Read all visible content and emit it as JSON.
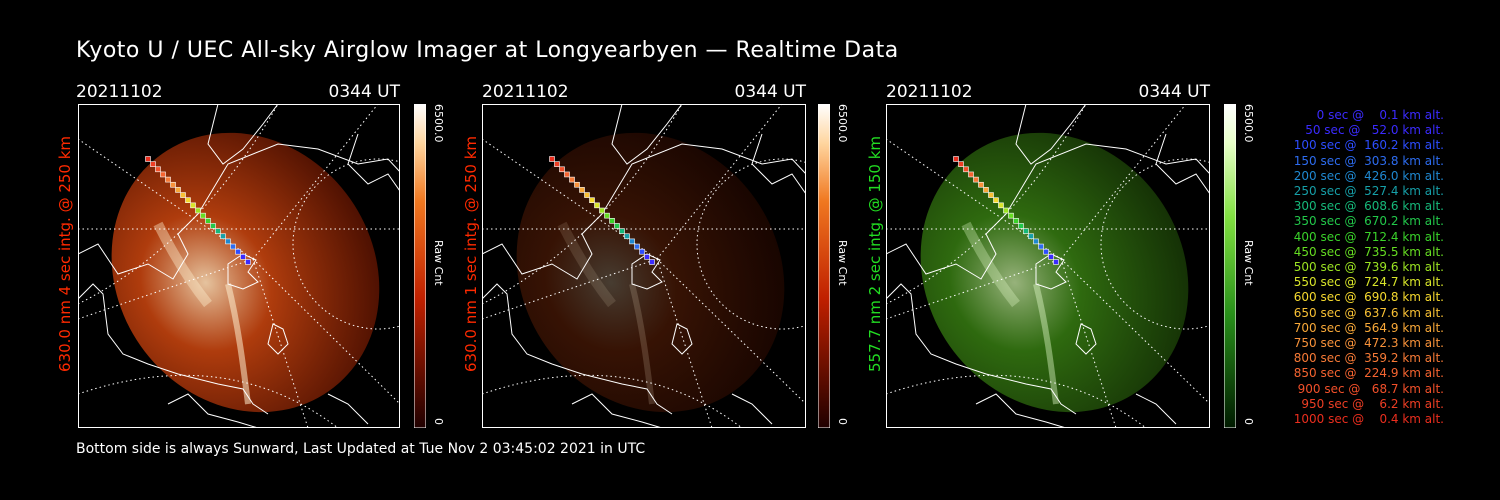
{
  "header": {
    "title": "Kyoto U / UEC All-sky Airglow Imager at Longyearbyen — Realtime Data"
  },
  "panels": [
    {
      "date": "20211102",
      "time": "0344 UT",
      "side_label": "630.0 nm 4 sec intg. @ 250 km",
      "label_color": "#ff2a00",
      "colorbar_max": "6500.0",
      "colorbar_min": "0",
      "colorbar_unit": "Raw Cnt",
      "palette": "red",
      "intensity": 0.9
    },
    {
      "date": "20211102",
      "time": "0344 UT",
      "side_label": "630.0 nm 1 sec intg. @ 250 km",
      "label_color": "#ff2a00",
      "colorbar_max": "6500.0",
      "colorbar_min": "0",
      "colorbar_unit": "Raw Cnt",
      "palette": "red",
      "intensity": 0.28
    },
    {
      "date": "20211102",
      "time": "0344 UT",
      "side_label": "557.7 nm 2 sec intg. @ 150 km",
      "label_color": "#22dd22",
      "colorbar_max": "6500.0",
      "colorbar_min": "0",
      "colorbar_unit": "Raw Cnt",
      "palette": "green",
      "intensity": 0.7
    }
  ],
  "legend": [
    {
      "text": "   0 sec @    0.1 km alt.",
      "color": "#3b2bff"
    },
    {
      "text": "  50 sec @   52.0 km alt.",
      "color": "#3b2bff"
    },
    {
      "text": " 100 sec @  160.2 km alt.",
      "color": "#2d4dff"
    },
    {
      "text": " 150 sec @  303.8 km alt.",
      "color": "#2d6cf0"
    },
    {
      "text": " 200 sec @  426.0 km alt.",
      "color": "#1f88d0"
    },
    {
      "text": " 250 sec @  527.4 km alt.",
      "color": "#169fa8"
    },
    {
      "text": " 300 sec @  608.6 km alt.",
      "color": "#16b87a"
    },
    {
      "text": " 350 sec @  670.2 km alt.",
      "color": "#22c84a"
    },
    {
      "text": " 400 sec @  712.4 km alt.",
      "color": "#3ad22a"
    },
    {
      "text": " 450 sec @  735.5 km alt.",
      "color": "#66dd22"
    },
    {
      "text": " 500 sec @  739.6 km alt.",
      "color": "#9be322"
    },
    {
      "text": " 550 sec @  724.7 km alt.",
      "color": "#d8e52a"
    },
    {
      "text": " 600 sec @  690.8 km alt.",
      "color": "#f5d92e"
    },
    {
      "text": " 650 sec @  637.6 km alt.",
      "color": "#f8c034"
    },
    {
      "text": " 700 sec @  564.9 km alt.",
      "color": "#f8a838"
    },
    {
      "text": " 750 sec @  472.3 km alt.",
      "color": "#f8923a"
    },
    {
      "text": " 800 sec @  359.2 km alt.",
      "color": "#f77a36"
    },
    {
      "text": " 850 sec @  224.9 km alt.",
      "color": "#f56430"
    },
    {
      "text": " 900 sec @   68.7 km alt.",
      "color": "#f2502a"
    },
    {
      "text": " 950 sec @    6.2 km alt.",
      "color": "#ee3e24"
    },
    {
      "text": "1000 sec @    0.4 km alt.",
      "color": "#ea2e1e"
    }
  ],
  "footer": {
    "text": "Bottom side is always Sunward, Last Updated at Tue Nov  2 03:45:02 2021 in UTC"
  }
}
